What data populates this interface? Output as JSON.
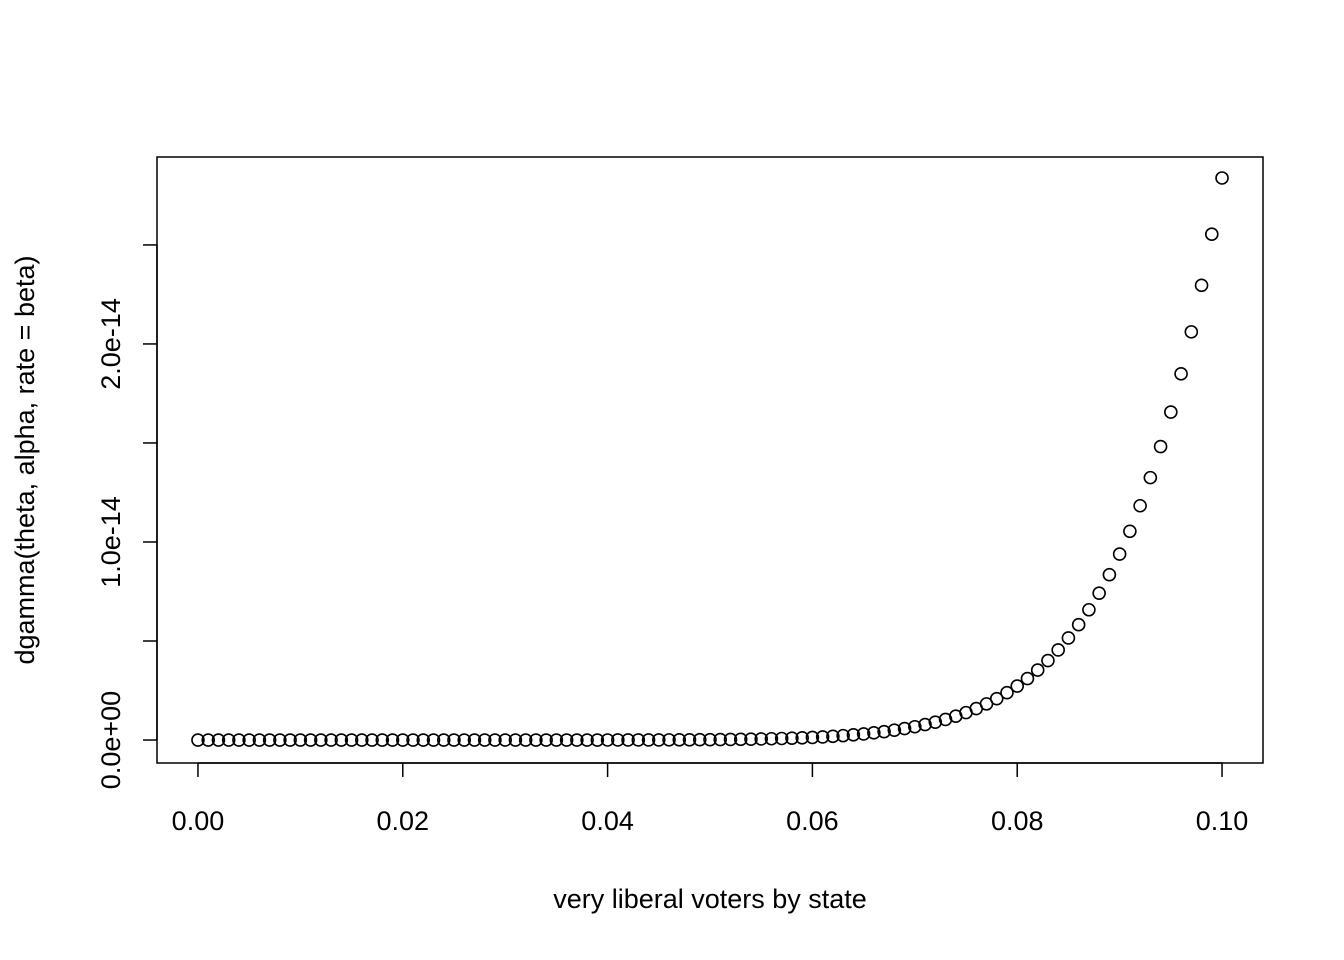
{
  "chart_data": {
    "type": "scatter",
    "xlabel": "very liberal voters by state",
    "ylabel": "dgamma(theta, alpha, rate = beta)",
    "marker": "open-circle",
    "color": "#000000",
    "x": [
      0,
      0.001,
      0.002,
      0.003,
      0.004,
      0.005,
      0.006,
      0.007,
      0.008,
      0.009,
      0.01,
      0.011,
      0.012,
      0.013,
      0.014,
      0.015,
      0.016,
      0.017,
      0.018,
      0.019,
      0.02,
      0.021,
      0.022,
      0.023,
      0.024,
      0.025,
      0.026,
      0.027,
      0.028,
      0.029,
      0.03,
      0.031,
      0.032,
      0.033,
      0.034,
      0.035,
      0.036,
      0.037,
      0.038,
      0.039,
      0.04,
      0.041,
      0.042,
      0.043,
      0.044,
      0.045,
      0.046,
      0.047,
      0.048,
      0.049,
      0.05,
      0.051,
      0.052,
      0.053,
      0.054,
      0.055,
      0.056,
      0.057,
      0.058,
      0.059,
      0.06,
      0.061,
      0.062,
      0.063,
      0.064,
      0.065,
      0.066,
      0.067,
      0.068,
      0.069,
      0.07,
      0.071,
      0.072,
      0.073,
      0.074,
      0.075,
      0.076,
      0.077,
      0.078,
      0.079,
      0.08,
      0.081,
      0.082,
      0.083,
      0.084,
      0.085,
      0.086,
      0.087,
      0.088,
      0.089,
      0.09,
      0.091,
      0.092,
      0.093,
      0.094,
      0.095,
      0.096,
      0.097,
      0.098,
      0.099,
      0.1
    ],
    "values": [
      0,
      0,
      0,
      0,
      0,
      0,
      0,
      0,
      0,
      0,
      0,
      0,
      0,
      0,
      0,
      0,
      0,
      0,
      0,
      0,
      0,
      0,
      0,
      0,
      0,
      0,
      0,
      0,
      0,
      0,
      0,
      0,
      0,
      0,
      0,
      0,
      0,
      0,
      0,
      0,
      1.9e-18,
      2.4e-18,
      3.1e-18,
      4e-18,
      5.1e-18,
      6.5e-18,
      8.2e-18,
      1.02e-17,
      1.28e-17,
      1.58e-17,
      1.96e-17,
      2.41e-17,
      2.96e-17,
      3.61e-17,
      4.4e-17,
      5.34e-17,
      6.45e-17,
      7.76e-17,
      9.31e-17,
      1.114e-16,
      1.33e-16,
      1.58e-16,
      1.87e-16,
      2.22e-16,
      2.62e-16,
      3.08e-16,
      3.62e-16,
      4.23e-16,
      4.95e-16,
      5.77e-16,
      6.71e-16,
      7.79e-16,
      9.01e-16,
      1.042e-15,
      1.202e-15,
      1.384e-15,
      1.589e-15,
      1.825e-15,
      2.089e-15,
      2.389e-15,
      2.727e-15,
      3.105e-15,
      3.531e-15,
      4.013e-15,
      4.549e-15,
      5.154e-15,
      5.824e-15,
      6.578e-15,
      7.416e-15,
      8.347e-15,
      9.388e-15,
      1.054e-14,
      1.183e-14,
      1.325e-14,
      1.482e-14,
      1.656e-14,
      1.849e-14,
      2.061e-14,
      2.296e-14,
      2.554e-14,
      2.838e-14
    ],
    "xlim": [
      -0.004,
      0.104
    ],
    "ylim": [
      -1.16e-15,
      2.944e-14
    ],
    "xticks": [
      {
        "value": 0,
        "label": "0.00"
      },
      {
        "value": 0.02,
        "label": "0.02"
      },
      {
        "value": 0.04,
        "label": "0.04"
      },
      {
        "value": 0.06,
        "label": "0.06"
      },
      {
        "value": 0.08,
        "label": "0.08"
      },
      {
        "value": 0.1,
        "label": "0.10"
      }
    ],
    "yticks": [
      {
        "value": 0,
        "label": "0.0e+00"
      },
      {
        "value": 5e-15,
        "label": null
      },
      {
        "value": 1e-14,
        "label": "1.0e-14"
      },
      {
        "value": 1.5e-14,
        "label": null
      },
      {
        "value": 2e-14,
        "label": "2.0e-14"
      },
      {
        "value": 2.5e-14,
        "label": null
      }
    ],
    "grid": false
  }
}
